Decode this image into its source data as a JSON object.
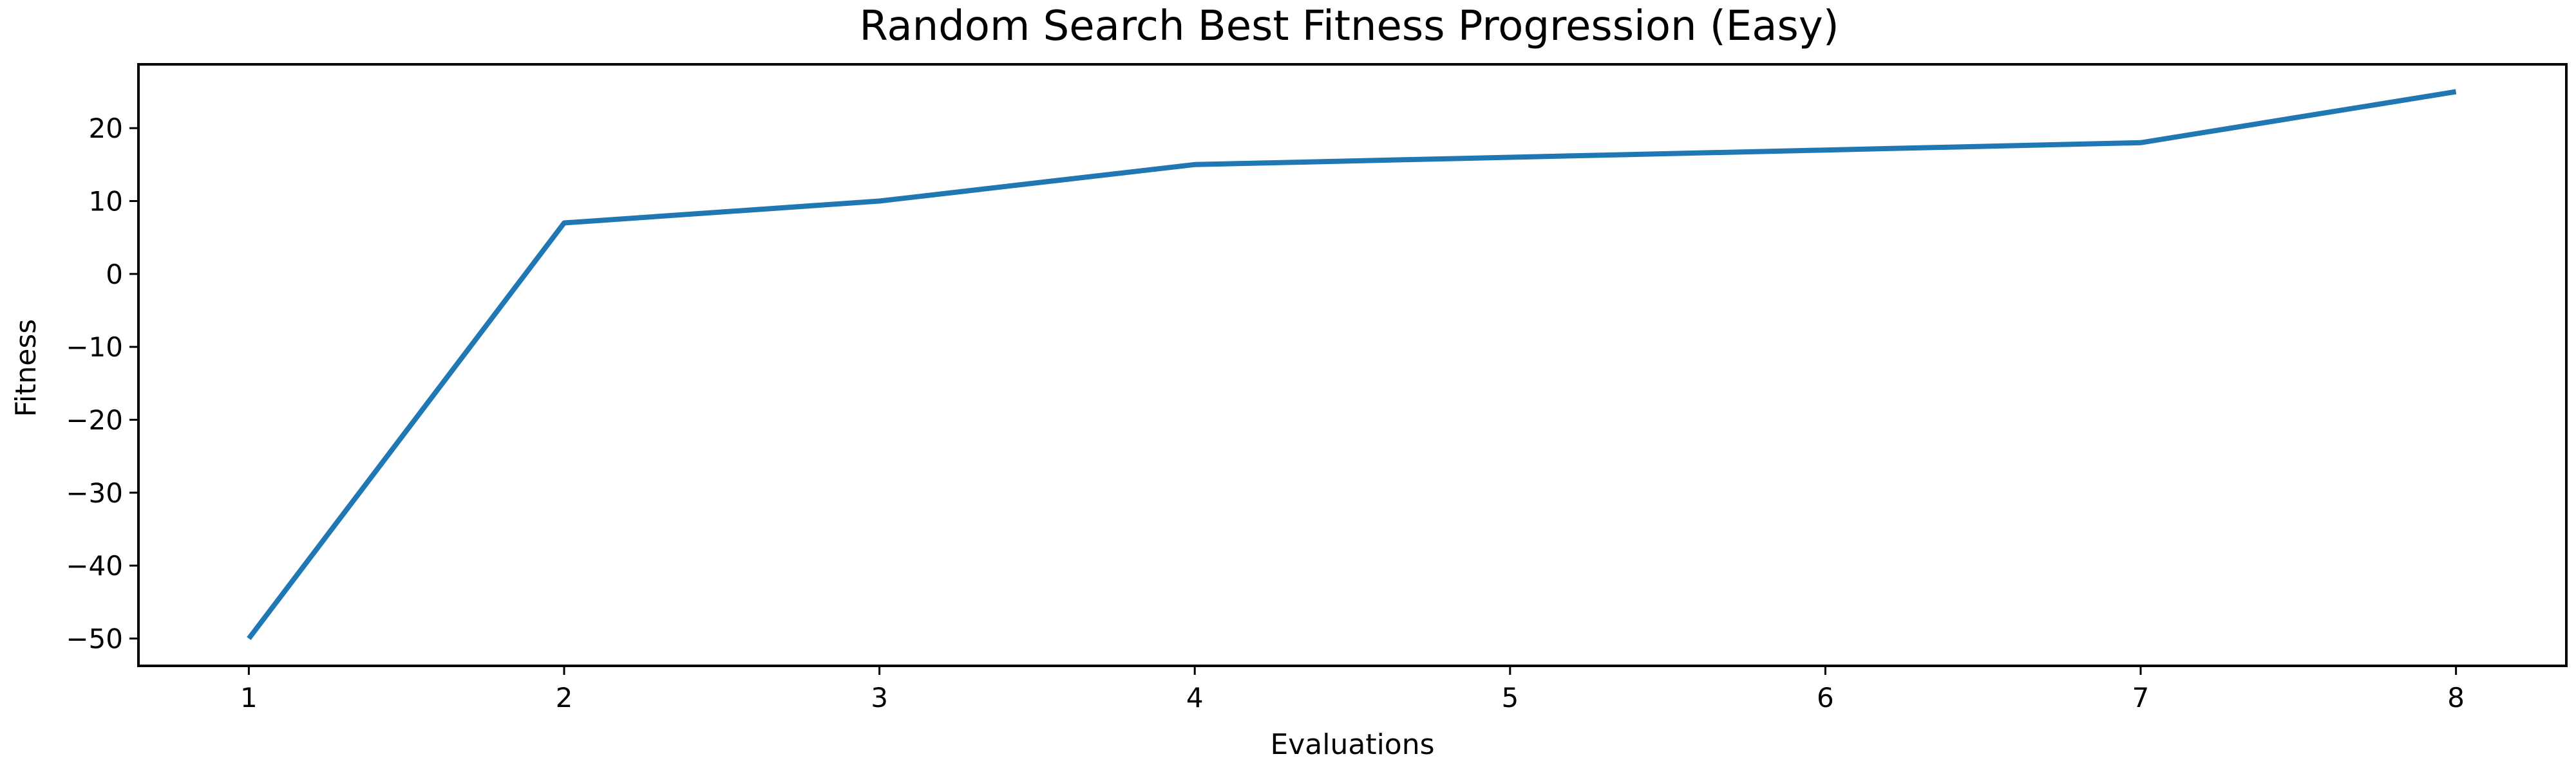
{
  "chart_data": {
    "type": "line",
    "title": "Random Search Best Fitness Progression (Easy)",
    "xlabel": "Evaluations",
    "ylabel": "Fitness",
    "x": [
      1,
      2,
      3,
      4,
      5,
      6,
      7,
      8
    ],
    "series": [
      {
        "values": [
          -50,
          7,
          10,
          15,
          16,
          17,
          18,
          25
        ]
      }
    ],
    "xlim": [
      0.65,
      8.35
    ],
    "ylim": [
      -53.75,
      28.75
    ],
    "xticks": [
      1,
      2,
      3,
      4,
      5,
      6,
      7,
      8
    ],
    "yticks": [
      -50,
      -40,
      -30,
      -20,
      -10,
      0,
      10,
      20
    ],
    "grid": false,
    "legend": false,
    "line_color": "#1f77b4"
  }
}
